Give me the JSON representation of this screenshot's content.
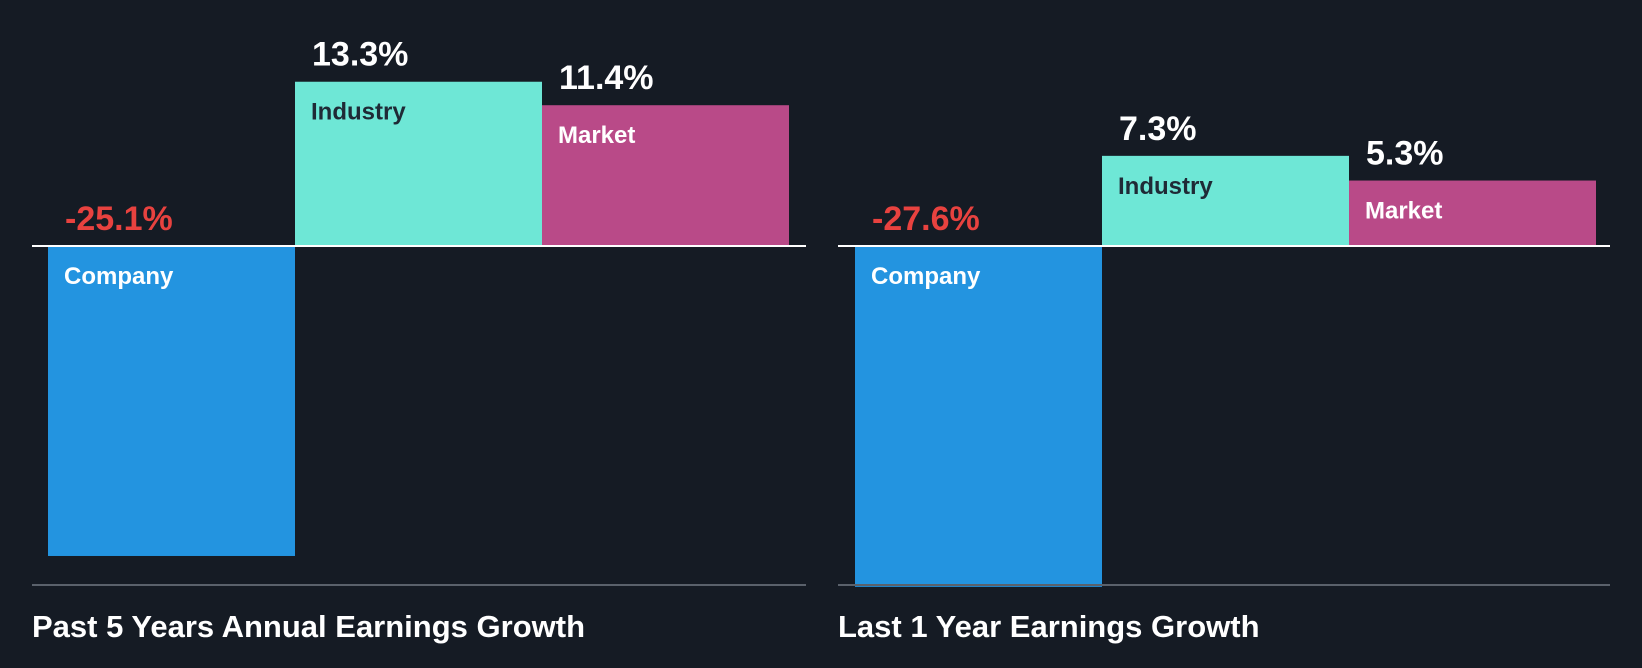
{
  "colors": {
    "background": "#151b24",
    "company": "#2394e0",
    "industry": "#6ee7d6",
    "market": "#b94a88",
    "negative_text": "#e8423f",
    "positive_text": "#ffffff",
    "industry_label": "#1f2a36",
    "light_label": "#ffffff",
    "zero_line": "#ffffff",
    "base_line": "#5a616b"
  },
  "chart_data": [
    {
      "type": "bar",
      "title": "Past 5 Years Annual Earnings Growth",
      "categories": [
        "Company",
        "Industry",
        "Market"
      ],
      "values": [
        -25.1,
        13.3,
        11.4
      ],
      "value_labels": [
        "-25.1%",
        "13.3%",
        "11.4%"
      ],
      "unit": "%",
      "ylim": [
        -27.6,
        13.3
      ]
    },
    {
      "type": "bar",
      "title": "Last 1 Year Earnings Growth",
      "categories": [
        "Company",
        "Industry",
        "Market"
      ],
      "values": [
        -27.6,
        7.3,
        5.3
      ],
      "value_labels": [
        "-27.6%",
        "7.3%",
        "5.3%"
      ],
      "unit": "%",
      "ylim": [
        -27.6,
        13.3
      ]
    }
  ]
}
